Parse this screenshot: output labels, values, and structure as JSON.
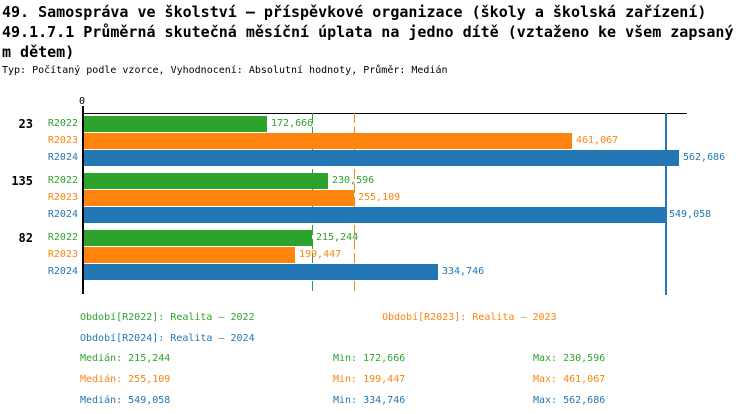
{
  "header": {
    "title_line1": "49. Samospráva ve školství – příspěvkové organizace (školy a školská zařízení)",
    "title_line2": "49.1.7.1 Průměrná skutečná měsíční úplata na jedno dítě (vztaženo ke všem zapsaný",
    "title_line3": "m dětem)",
    "meta": "Typ: Počítaný podle vzorce, Vyhodnocení: Absolutní hodnoty, Průměr: Medián"
  },
  "colors": {
    "r2022_green": "#2DA32D",
    "r2023_orange": "#FF840E",
    "r2024_blue": "#2377B4",
    "axis_black": "#000000"
  },
  "chart_data": {
    "type": "bar",
    "orientation": "horizontal",
    "title": "49.1.7.1 Průměrná skutečná měsíční úplata na jedno dítě (vztaženo ke všem zapsaným dětem)",
    "x_axis": {
      "zero_tick_label": "0",
      "approx_max": 600000,
      "grid": false
    },
    "series_labels": [
      "R2022",
      "R2023",
      "R2024"
    ],
    "series_colors": [
      "#2DA32D",
      "#FF840E",
      "#2377B4"
    ],
    "groups": [
      {
        "id": "23",
        "values": [
          172666,
          461067,
          562686
        ],
        "value_labels": [
          "172,666",
          "461,067",
          "562,686"
        ]
      },
      {
        "id": "135",
        "values": [
          230596,
          255109,
          549058
        ],
        "value_labels": [
          "230,596",
          "255,109",
          "549,058"
        ]
      },
      {
        "id": "82",
        "values": [
          215244,
          199447,
          334746
        ],
        "value_labels": [
          "215,244",
          "199,447",
          "334,746"
        ]
      }
    ],
    "median_lines": [
      {
        "series": "R2022",
        "value": 215244,
        "color": "#2DA32D",
        "style": "dashed"
      },
      {
        "series": "R2023",
        "value": 255109,
        "color": "#FF840E",
        "style": "dashed"
      },
      {
        "series": "R2024",
        "value": 549058,
        "color": "#2377B4",
        "style": "solid"
      }
    ],
    "summary": {
      "R2022": {
        "median": 215244,
        "min": 172666,
        "max": 230596
      },
      "R2023": {
        "median": 255109,
        "min": 199447,
        "max": 461067
      },
      "R2024": {
        "median": 549058,
        "min": 334746,
        "max": 562686
      }
    },
    "legend_position": "bottom"
  },
  "legend": {
    "items": [
      {
        "label": "Období[R2022]: Realita – 2022",
        "color": "#2DA32D"
      },
      {
        "label": "Období[R2023]: Realita – 2023",
        "color": "#FF840E"
      },
      {
        "label": "Období[R2024]: Realita – 2024",
        "color": "#2377B4"
      }
    ]
  },
  "stats": {
    "rows": [
      {
        "median": "Medián: 215,244",
        "min": "Min: 172,666",
        "max": "Max: 230,596",
        "color": "#2DA32D"
      },
      {
        "median": "Medián: 255,109",
        "min": "Min: 199,447",
        "max": "Max: 461,067",
        "color": "#FF840E"
      },
      {
        "median": "Medián: 549,058",
        "min": "Min: 334,746",
        "max": "Max: 562,686",
        "color": "#2377B4"
      }
    ]
  }
}
